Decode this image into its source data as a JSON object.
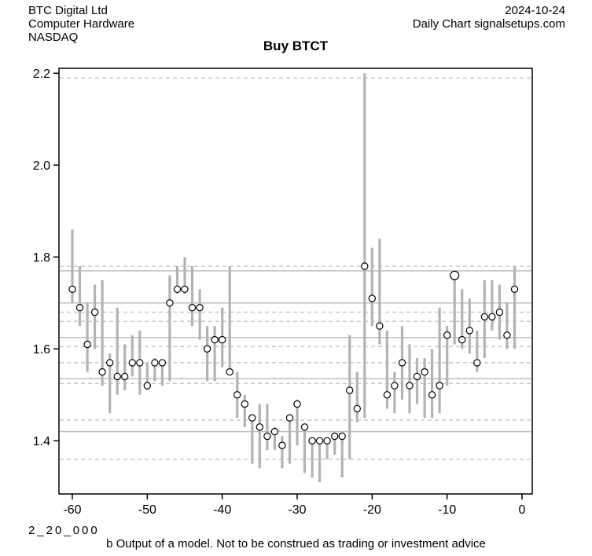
{
  "header": {
    "company": "BTC Digital Ltd",
    "industry": "Computer Hardware",
    "exchange": "NASDAQ",
    "date": "2024-10-24",
    "source_line": "Daily Chart signalsetups.com"
  },
  "title": "Buy BTCT",
  "footer": {
    "watermark": "2_20_000",
    "disclaimer": "b Output of a model. Not to be construed as trading or investment advice"
  },
  "chart_data": {
    "type": "bar",
    "subtype": "high-low-close-range",
    "title": "Buy BTCT",
    "xlabel": "",
    "ylabel": "",
    "xlim": [
      -61.8,
      1.4
    ],
    "ylim": [
      1.284,
      2.209
    ],
    "x_ticks": [
      -60,
      -50,
      -40,
      -30,
      -20,
      -10,
      0
    ],
    "y_ticks": [
      "1.4",
      "1.6",
      "1.8",
      "2.0",
      "2.2"
    ],
    "grid": "off",
    "legend": "none",
    "colors": {
      "bar": "#b3b3b3",
      "level_solid": "#bfbfbf",
      "level_dashed": "#c9c9c9",
      "marker_fill": "#ffffff",
      "marker_stroke": "#000000",
      "axis": "#000000"
    },
    "levels_solid": [
      1.77,
      1.7,
      1.625,
      1.535,
      1.42
    ],
    "levels_dashed": [
      2.19,
      1.78,
      1.68,
      1.66,
      1.605,
      1.57,
      1.525,
      1.445,
      1.36
    ],
    "series": [
      {
        "day": -60,
        "high": 1.86,
        "low": 1.7,
        "close": 1.73
      },
      {
        "day": -59,
        "high": 1.78,
        "low": 1.65,
        "close": 1.69
      },
      {
        "day": -58,
        "high": 1.7,
        "low": 1.55,
        "close": 1.61
      },
      {
        "day": -57,
        "high": 1.74,
        "low": 1.6,
        "close": 1.68
      },
      {
        "day": -56,
        "high": 1.75,
        "low": 1.52,
        "close": 1.55
      },
      {
        "day": -55,
        "high": 1.59,
        "low": 1.46,
        "close": 1.57
      },
      {
        "day": -54,
        "high": 1.69,
        "low": 1.5,
        "close": 1.54
      },
      {
        "day": -53,
        "high": 1.61,
        "low": 1.51,
        "close": 1.54
      },
      {
        "day": -52,
        "high": 1.63,
        "low": 1.54,
        "close": 1.57
      },
      {
        "day": -51,
        "high": 1.64,
        "low": 1.5,
        "close": 1.57
      },
      {
        "day": -50,
        "high": 1.57,
        "low": 1.51,
        "close": 1.52
      },
      {
        "day": -49,
        "high": 1.58,
        "low": 1.53,
        "close": 1.57
      },
      {
        "day": -48,
        "high": 1.57,
        "low": 1.52,
        "close": 1.57
      },
      {
        "day": -47,
        "high": 1.76,
        "low": 1.53,
        "close": 1.7
      },
      {
        "day": -46,
        "high": 1.78,
        "low": 1.72,
        "close": 1.73
      },
      {
        "day": -45,
        "high": 1.8,
        "low": 1.72,
        "close": 1.73
      },
      {
        "day": -44,
        "high": 1.78,
        "low": 1.65,
        "close": 1.69
      },
      {
        "day": -43,
        "high": 1.73,
        "low": 1.62,
        "close": 1.69
      },
      {
        "day": -42,
        "high": 1.65,
        "low": 1.53,
        "close": 1.6
      },
      {
        "day": -41,
        "high": 1.65,
        "low": 1.53,
        "close": 1.62
      },
      {
        "day": -40,
        "high": 1.69,
        "low": 1.56,
        "close": 1.62
      },
      {
        "day": -39,
        "high": 1.78,
        "low": 1.55,
        "close": 1.55
      },
      {
        "day": -38,
        "high": 1.55,
        "low": 1.45,
        "close": 1.5
      },
      {
        "day": -37,
        "high": 1.5,
        "low": 1.43,
        "close": 1.48
      },
      {
        "day": -36,
        "high": 1.45,
        "low": 1.35,
        "close": 1.45
      },
      {
        "day": -35,
        "high": 1.48,
        "low": 1.34,
        "close": 1.43
      },
      {
        "day": -34,
        "high": 1.48,
        "low": 1.38,
        "close": 1.41
      },
      {
        "day": -33,
        "high": 1.43,
        "low": 1.38,
        "close": 1.42
      },
      {
        "day": -32,
        "high": 1.41,
        "low": 1.34,
        "close": 1.39
      },
      {
        "day": -31,
        "high": 1.45,
        "low": 1.35,
        "close": 1.45
      },
      {
        "day": -30,
        "high": 1.49,
        "low": 1.39,
        "close": 1.48
      },
      {
        "day": -29,
        "high": 1.43,
        "low": 1.33,
        "close": 1.43
      },
      {
        "day": -28,
        "high": 1.4,
        "low": 1.32,
        "close": 1.4
      },
      {
        "day": -27,
        "high": 1.4,
        "low": 1.31,
        "close": 1.4
      },
      {
        "day": -26,
        "high": 1.4,
        "low": 1.36,
        "close": 1.4
      },
      {
        "day": -25,
        "high": 1.41,
        "low": 1.37,
        "close": 1.41
      },
      {
        "day": -24,
        "high": 1.41,
        "low": 1.32,
        "close": 1.41
      },
      {
        "day": -23,
        "high": 1.63,
        "low": 1.36,
        "close": 1.51
      },
      {
        "day": -22,
        "high": 1.55,
        "low": 1.44,
        "close": 1.47
      },
      {
        "day": -21,
        "high": 2.2,
        "low": 1.45,
        "close": 1.78
      },
      {
        "day": -20,
        "high": 1.82,
        "low": 1.65,
        "close": 1.71
      },
      {
        "day": -19,
        "high": 1.84,
        "low": 1.61,
        "close": 1.65
      },
      {
        "day": -18,
        "high": 1.64,
        "low": 1.47,
        "close": 1.5
      },
      {
        "day": -17,
        "high": 1.55,
        "low": 1.46,
        "close": 1.52
      },
      {
        "day": -16,
        "high": 1.65,
        "low": 1.49,
        "close": 1.57
      },
      {
        "day": -15,
        "high": 1.61,
        "low": 1.46,
        "close": 1.52
      },
      {
        "day": -14,
        "high": 1.58,
        "low": 1.48,
        "close": 1.54
      },
      {
        "day": -13,
        "high": 1.58,
        "low": 1.45,
        "close": 1.55
      },
      {
        "day": -12,
        "high": 1.6,
        "low": 1.45,
        "close": 1.5
      },
      {
        "day": -11,
        "high": 1.69,
        "low": 1.46,
        "close": 1.52
      },
      {
        "day": -10,
        "high": 1.65,
        "low": 1.52,
        "close": 1.63
      },
      {
        "day": -9,
        "high": 1.76,
        "low": 1.61,
        "close": 1.76,
        "emphasis": true
      },
      {
        "day": -8,
        "high": 1.73,
        "low": 1.6,
        "close": 1.62
      },
      {
        "day": -7,
        "high": 1.71,
        "low": 1.59,
        "close": 1.64
      },
      {
        "day": -6,
        "high": 1.64,
        "low": 1.55,
        "close": 1.57
      },
      {
        "day": -5,
        "high": 1.75,
        "low": 1.58,
        "close": 1.67
      },
      {
        "day": -4,
        "high": 1.75,
        "low": 1.64,
        "close": 1.67
      },
      {
        "day": -3,
        "high": 1.74,
        "low": 1.62,
        "close": 1.68
      },
      {
        "day": -2,
        "high": 1.7,
        "low": 1.6,
        "close": 1.63
      },
      {
        "day": -1,
        "high": 1.78,
        "low": 1.6,
        "close": 1.73
      }
    ]
  }
}
